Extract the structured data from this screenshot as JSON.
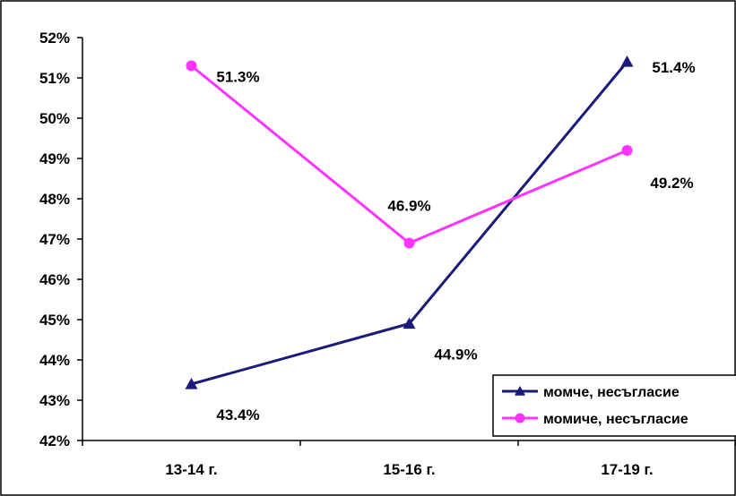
{
  "chart_data": {
    "type": "line",
    "categories": [
      "13-14 г.",
      "15-16 г.",
      "17-19 г."
    ],
    "series": [
      {
        "name": "момче, несъгласие",
        "values": [
          43.4,
          44.9,
          51.4
        ],
        "labels": [
          "43.4%",
          "44.9%",
          "51.4%"
        ],
        "color": "#1a1a7a",
        "marker": "triangle"
      },
      {
        "name": "момиче, несъгласие",
        "values": [
          51.3,
          46.9,
          49.2
        ],
        "labels": [
          "51.3%",
          "46.9%",
          "49.2%"
        ],
        "color": "#ff33ff",
        "marker": "circle"
      }
    ],
    "ylim": [
      42,
      52
    ],
    "yticks": [
      "42%",
      "43%",
      "44%",
      "45%",
      "46%",
      "47%",
      "48%",
      "49%",
      "50%",
      "51%",
      "52%"
    ],
    "grid": false,
    "legend_position": "bottom-right"
  }
}
